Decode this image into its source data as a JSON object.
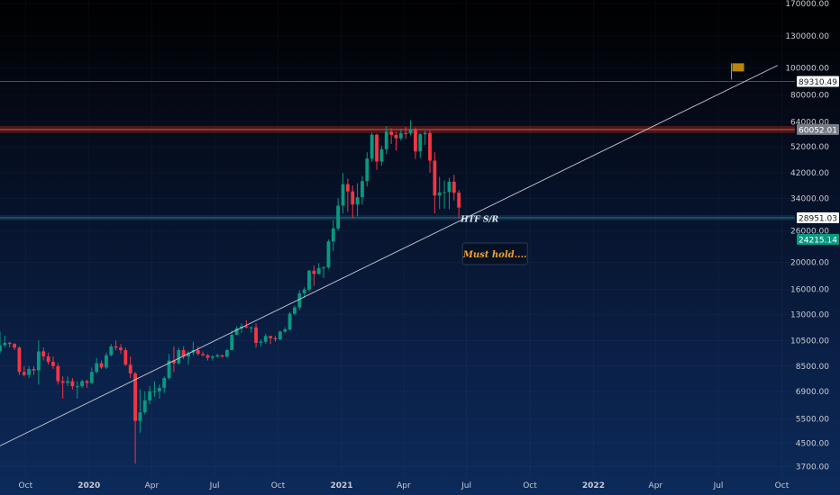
{
  "chart_data": {
    "type": "candlestick",
    "title": "",
    "xlabel": "",
    "ylabel": "",
    "y_scale": "log",
    "ylim": [
      3400,
      175000
    ],
    "xlim": [
      "2019-08-25",
      "2022-10-20"
    ],
    "y_ticks": [
      "170000.00",
      "130000.00",
      "100000.00",
      "80000.00",
      "64000.00",
      "52000.00",
      "42000.00",
      "34000.00",
      "26000.00",
      "20000.00",
      "16000.00",
      "13000.00",
      "10500.00",
      "8500.00",
      "6900.00",
      "5500.00",
      "4500.00",
      "3700.00"
    ],
    "x_ticks": [
      {
        "label": "Oct",
        "date": "2019-10-01",
        "bold": false
      },
      {
        "label": "2020",
        "date": "2020-01-01",
        "bold": true
      },
      {
        "label": "Apr",
        "date": "2020-04-01",
        "bold": false
      },
      {
        "label": "Jul",
        "date": "2020-07-01",
        "bold": false
      },
      {
        "label": "Oct",
        "date": "2020-10-01",
        "bold": false
      },
      {
        "label": "2021",
        "date": "2021-01-01",
        "bold": true
      },
      {
        "label": "Apr",
        "date": "2021-04-01",
        "bold": false
      },
      {
        "label": "Jul",
        "date": "2021-07-01",
        "bold": false
      },
      {
        "label": "Oct",
        "date": "2021-10-01",
        "bold": false
      },
      {
        "label": "2022",
        "date": "2022-01-01",
        "bold": true
      },
      {
        "label": "Apr",
        "date": "2022-04-01",
        "bold": false
      },
      {
        "label": "Jul",
        "date": "2022-07-01",
        "bold": false
      },
      {
        "label": "Oct",
        "date": "2022-10-01",
        "bold": false
      }
    ],
    "price_tags": [
      {
        "value": 89310.49,
        "label": "89310.49",
        "bg": "#ffffff",
        "fg": "#131722"
      },
      {
        "value": 60052.01,
        "label": "60052.01",
        "bg": "#787b86",
        "fg": "#ffffff"
      },
      {
        "value": 28951.03,
        "label": "28951.03",
        "bg": "#ffffff",
        "fg": "#131722"
      },
      {
        "value": 24215.14,
        "label": "24215.14",
        "bg": "#089981",
        "fg": "#ffffff"
      }
    ],
    "levels": [
      {
        "value": 89310,
        "color": "#3b5b4a"
      },
      {
        "value": 60052,
        "color": "#c0392b"
      },
      {
        "value": 28951,
        "color": "#2a6f8f"
      }
    ],
    "trendline": [
      {
        "date": "2019-08-25",
        "value": 4400
      },
      {
        "date": "2022-09-25",
        "value": 102000
      }
    ],
    "annotations": [
      {
        "text": "HTF S/R",
        "date": "2021-07-20",
        "value": 28000
      },
      {
        "text": "Must hold....",
        "date": "2021-08-10",
        "value": 21500
      }
    ],
    "colors": {
      "up": "#089981",
      "down": "#f23645",
      "annotation_orange": "#f0a030",
      "flag": "#b8860b"
    },
    "candles": [
      [
        "2019-08-25",
        9600,
        10100,
        11300,
        9400
      ],
      [
        "2019-09-01",
        10100,
        10300,
        10900,
        9900
      ],
      [
        "2019-09-08",
        10300,
        10200,
        10400,
        9900
      ],
      [
        "2019-09-15",
        10200,
        9900,
        10300,
        9700
      ],
      [
        "2019-09-22",
        9900,
        8100,
        10000,
        7900
      ],
      [
        "2019-09-29",
        8100,
        7900,
        8500,
        7800
      ],
      [
        "2019-10-06",
        7900,
        8300,
        8500,
        7700
      ],
      [
        "2019-10-13",
        8300,
        8200,
        8500,
        7900
      ],
      [
        "2019-10-20",
        8200,
        9600,
        10500,
        7300
      ],
      [
        "2019-10-27",
        9600,
        9200,
        9900,
        8900
      ],
      [
        "2019-11-03",
        9200,
        8800,
        9500,
        8600
      ],
      [
        "2019-11-10",
        8800,
        8500,
        9200,
        8300
      ],
      [
        "2019-11-17",
        8500,
        7500,
        8700,
        7300
      ],
      [
        "2019-11-24",
        7500,
        7400,
        7800,
        6500
      ],
      [
        "2019-12-01",
        7400,
        7500,
        7800,
        7200
      ],
      [
        "2019-12-08",
        7500,
        7200,
        7700,
        7000
      ],
      [
        "2019-12-15",
        7200,
        7200,
        7500,
        6500
      ],
      [
        "2019-12-22",
        7200,
        7500,
        7600,
        7100
      ],
      [
        "2019-12-29",
        7500,
        7400,
        7600,
        7100
      ],
      [
        "2020-01-05",
        7400,
        8100,
        8400,
        7300
      ],
      [
        "2020-01-12",
        8100,
        8700,
        9100,
        8000
      ],
      [
        "2020-01-19",
        8700,
        8400,
        8900,
        8300
      ],
      [
        "2020-01-26",
        8400,
        9300,
        9500,
        8300
      ],
      [
        "2020-02-02",
        9300,
        10000,
        10200,
        9200
      ],
      [
        "2020-02-09",
        10000,
        9900,
        10500,
        9700
      ],
      [
        "2020-02-16",
        9900,
        9700,
        10200,
        9400
      ],
      [
        "2020-02-23",
        9700,
        8600,
        9900,
        8500
      ],
      [
        "2020-03-01",
        8600,
        8000,
        9200,
        7700
      ],
      [
        "2020-03-08",
        8000,
        5400,
        8100,
        3800
      ],
      [
        "2020-03-15",
        5400,
        5800,
        7000,
        4900
      ],
      [
        "2020-03-22",
        5800,
        6400,
        6900,
        5700
      ],
      [
        "2020-03-29",
        6400,
        6900,
        7200,
        6200
      ],
      [
        "2020-04-05",
        6900,
        6900,
        7500,
        6600
      ],
      [
        "2020-04-12",
        6900,
        7100,
        7300,
        6500
      ],
      [
        "2020-04-19",
        7100,
        7700,
        7800,
        6800
      ],
      [
        "2020-04-26",
        7700,
        8900,
        9400,
        7600
      ],
      [
        "2020-05-03",
        8900,
        8700,
        10000,
        8100
      ],
      [
        "2020-05-10",
        8700,
        9700,
        9900,
        8600
      ],
      [
        "2020-05-17",
        9700,
        9200,
        10000,
        9000
      ],
      [
        "2020-05-24",
        9200,
        9500,
        9600,
        8600
      ],
      [
        "2020-05-31",
        9500,
        9700,
        10400,
        9300
      ],
      [
        "2020-06-07",
        9700,
        9400,
        10000,
        9300
      ],
      [
        "2020-06-14",
        9400,
        9300,
        9600,
        9200
      ],
      [
        "2020-06-21",
        9300,
        9100,
        9400,
        8900
      ],
      [
        "2020-06-28",
        9100,
        9200,
        9300,
        8900
      ],
      [
        "2020-07-05",
        9200,
        9300,
        9400,
        9100
      ],
      [
        "2020-07-12",
        9300,
        9200,
        9300,
        9100
      ],
      [
        "2020-07-19",
        9200,
        9700,
        9800,
        9100
      ],
      [
        "2020-07-26",
        9700,
        11000,
        11400,
        9700
      ],
      [
        "2020-08-02",
        11000,
        11600,
        11800,
        11000
      ],
      [
        "2020-08-09",
        11600,
        11800,
        12100,
        11200
      ],
      [
        "2020-08-16",
        11800,
        11700,
        12400,
        11600
      ],
      [
        "2020-08-23",
        11700,
        11700,
        11800,
        11200
      ],
      [
        "2020-08-30",
        11700,
        10300,
        12100,
        9900
      ],
      [
        "2020-09-06",
        10300,
        10400,
        10600,
        10000
      ],
      [
        "2020-09-13",
        10400,
        10900,
        11100,
        10200
      ],
      [
        "2020-09-20",
        10900,
        10700,
        10900,
        10200
      ],
      [
        "2020-09-27",
        10700,
        10600,
        10900,
        10400
      ],
      [
        "2020-10-04",
        10600,
        11300,
        11400,
        10500
      ],
      [
        "2020-10-11",
        11300,
        11500,
        11700,
        11200
      ],
      [
        "2020-10-18",
        11500,
        13100,
        13300,
        11400
      ],
      [
        "2020-10-25",
        13100,
        13800,
        14000,
        12900
      ],
      [
        "2020-11-01",
        13800,
        15500,
        15900,
        13500
      ],
      [
        "2020-11-08",
        15500,
        16000,
        16300,
        14900
      ],
      [
        "2020-11-15",
        16000,
        18700,
        18800,
        15700
      ],
      [
        "2020-11-22",
        18700,
        18200,
        19500,
        16500
      ],
      [
        "2020-11-29",
        18200,
        19100,
        19900,
        18100
      ],
      [
        "2020-12-06",
        19100,
        19200,
        19400,
        17600
      ],
      [
        "2020-12-13",
        19200,
        23800,
        24200,
        19000
      ],
      [
        "2020-12-20",
        23800,
        26500,
        28400,
        22000
      ],
      [
        "2020-12-27",
        26500,
        32000,
        34000,
        26000
      ],
      [
        "2021-01-03",
        32000,
        38200,
        41900,
        30000
      ],
      [
        "2021-01-10",
        38200,
        36000,
        40000,
        30400
      ],
      [
        "2021-01-17",
        36000,
        32300,
        37800,
        28800
      ],
      [
        "2021-01-24",
        32300,
        34300,
        38500,
        29300
      ],
      [
        "2021-01-31",
        34300,
        39200,
        40900,
        32300
      ],
      [
        "2021-02-07",
        39200,
        47200,
        49700,
        37500
      ],
      [
        "2021-02-14",
        47200,
        57500,
        58400,
        46000
      ],
      [
        "2021-02-21",
        57500,
        46100,
        58000,
        43000
      ],
      [
        "2021-02-28",
        46100,
        51000,
        52600,
        44500
      ],
      [
        "2021-03-07",
        51000,
        59000,
        61800,
        49000
      ],
      [
        "2021-03-14",
        59000,
        57400,
        60600,
        53300
      ],
      [
        "2021-03-21",
        57400,
        55800,
        58900,
        50400
      ],
      [
        "2021-03-28",
        55800,
        58200,
        60200,
        54800
      ],
      [
        "2021-04-04",
        58200,
        58100,
        61200,
        55500
      ],
      [
        "2021-04-11",
        58100,
        60100,
        64800,
        57200
      ],
      [
        "2021-04-18",
        60100,
        50100,
        61000,
        47000
      ],
      [
        "2021-04-25",
        50100,
        57700,
        58300,
        47500
      ],
      [
        "2021-05-02",
        57700,
        58300,
        59500,
        52900
      ],
      [
        "2021-05-09",
        58300,
        46400,
        59600,
        42000
      ],
      [
        "2021-05-16",
        46400,
        34800,
        49700,
        30000
      ],
      [
        "2021-05-23",
        34800,
        35700,
        40600,
        31100
      ],
      [
        "2021-05-30",
        35700,
        35800,
        39400,
        31200
      ],
      [
        "2021-06-06",
        35800,
        39000,
        40300,
        31100
      ],
      [
        "2021-06-13",
        39000,
        35600,
        41300,
        33400
      ],
      [
        "2021-06-20",
        35600,
        31500,
        36400,
        28800
      ]
    ]
  }
}
